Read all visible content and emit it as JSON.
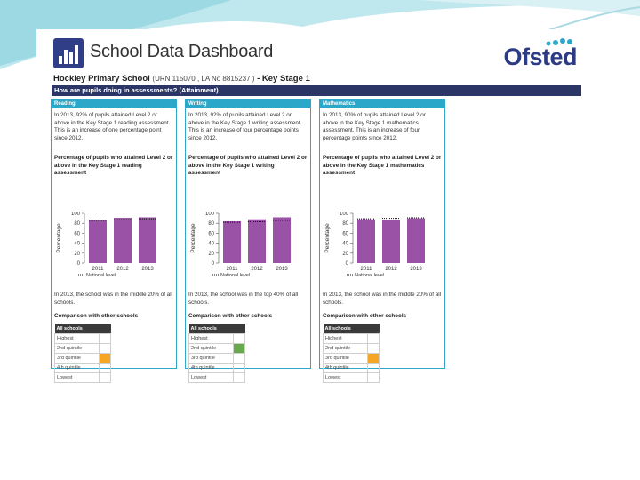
{
  "colors": {
    "header": "#2f3e86",
    "teal": "#2aa7c9",
    "bar": "#9a52a6",
    "band": "#2b3667",
    "quintile_orange": "#f5a623",
    "quintile_green": "#6aa84f"
  },
  "app": {
    "title": "School Data Dashboard",
    "brand": "Ofsted",
    "icon": "bar-chart-icon"
  },
  "school": {
    "name": "Hockley Primary School",
    "ids": "(URN 115070 , LA No 8815237 )",
    "stage": "- Key Stage 1"
  },
  "section_title": "How are pupils doing in assessments? (Attainment)",
  "comparison_heading": "Comparison with other schools",
  "table_header": "All schools",
  "quintile_labels": [
    "Highest",
    "2nd quintile",
    "3rd quintile",
    "4th quintile",
    "Lowest"
  ],
  "panels": [
    {
      "title": "Reading",
      "intro": "In 2013, 92% of pupils attained Level 2 or above in the Key Stage 1 reading assessment. This is an increase of one percentage point since 2012.",
      "chart_title": "Percentage of pupils who attained Level 2 or above in the Key Stage 1 reading assessment",
      "note": "In 2013, the school was in the middle 20% of all schools.",
      "highlight_index": 2,
      "highlight_color": "#f5a623"
    },
    {
      "title": "Writing",
      "intro": "In 2013, 92% of pupils attained Level 2 or above in the Key Stage 1 writing assessment. This is an increase of four percentage points since 2012.",
      "chart_title": "Percentage of pupils who attained Level 2 or above in the Key Stage 1 writing assessment",
      "note": "In 2013, the school was in the top 40% of all schools.",
      "highlight_index": 1,
      "highlight_color": "#6aa84f"
    },
    {
      "title": "Mathematics",
      "intro": "In 2013, 90% of pupils attained Level 2 or above in the Key Stage 1 mathematics assessment. This is an increase of four percentage points since 2012.",
      "chart_title": "Percentage of pupils who attained Level 2 or above in the Key Stage 1 mathematics assessment",
      "note": "In 2013, the school was in the middle 20% of all schools.",
      "highlight_index": 2,
      "highlight_color": "#f5a623"
    }
  ],
  "chart_data": [
    {
      "type": "bar",
      "categories": [
        "2011",
        "2012",
        "2013"
      ],
      "series": [
        {
          "values": [
            86,
            91,
            92
          ]
        },
        {
          "name": "National level",
          "values": [
            86,
            87,
            89
          ]
        }
      ],
      "ylabel": "Percentage",
      "yticks": [
        "0",
        "20",
        "40",
        "60",
        "80",
        "100"
      ],
      "ylim": [
        0,
        100
      ],
      "legend": "National level"
    },
    {
      "type": "bar",
      "categories": [
        "2011",
        "2012",
        "2013"
      ],
      "series": [
        {
          "values": [
            84,
            88,
            92
          ]
        },
        {
          "name": "National level",
          "values": [
            82,
            83,
            86
          ]
        }
      ],
      "ylabel": "Percentage",
      "yticks": [
        "0",
        "20",
        "40",
        "60",
        "80",
        "100"
      ],
      "ylim": [
        0,
        100
      ],
      "legend": "National level"
    },
    {
      "type": "bar",
      "categories": [
        "2011",
        "2012",
        "2013"
      ],
      "series": [
        {
          "values": [
            88,
            86,
            90
          ]
        },
        {
          "name": "National level",
          "values": [
            89,
            90,
            91
          ]
        }
      ],
      "ylabel": "Percentage",
      "yticks": [
        "0",
        "20",
        "40",
        "60",
        "80",
        "100"
      ],
      "ylim": [
        0,
        100
      ],
      "legend": "National level"
    }
  ]
}
